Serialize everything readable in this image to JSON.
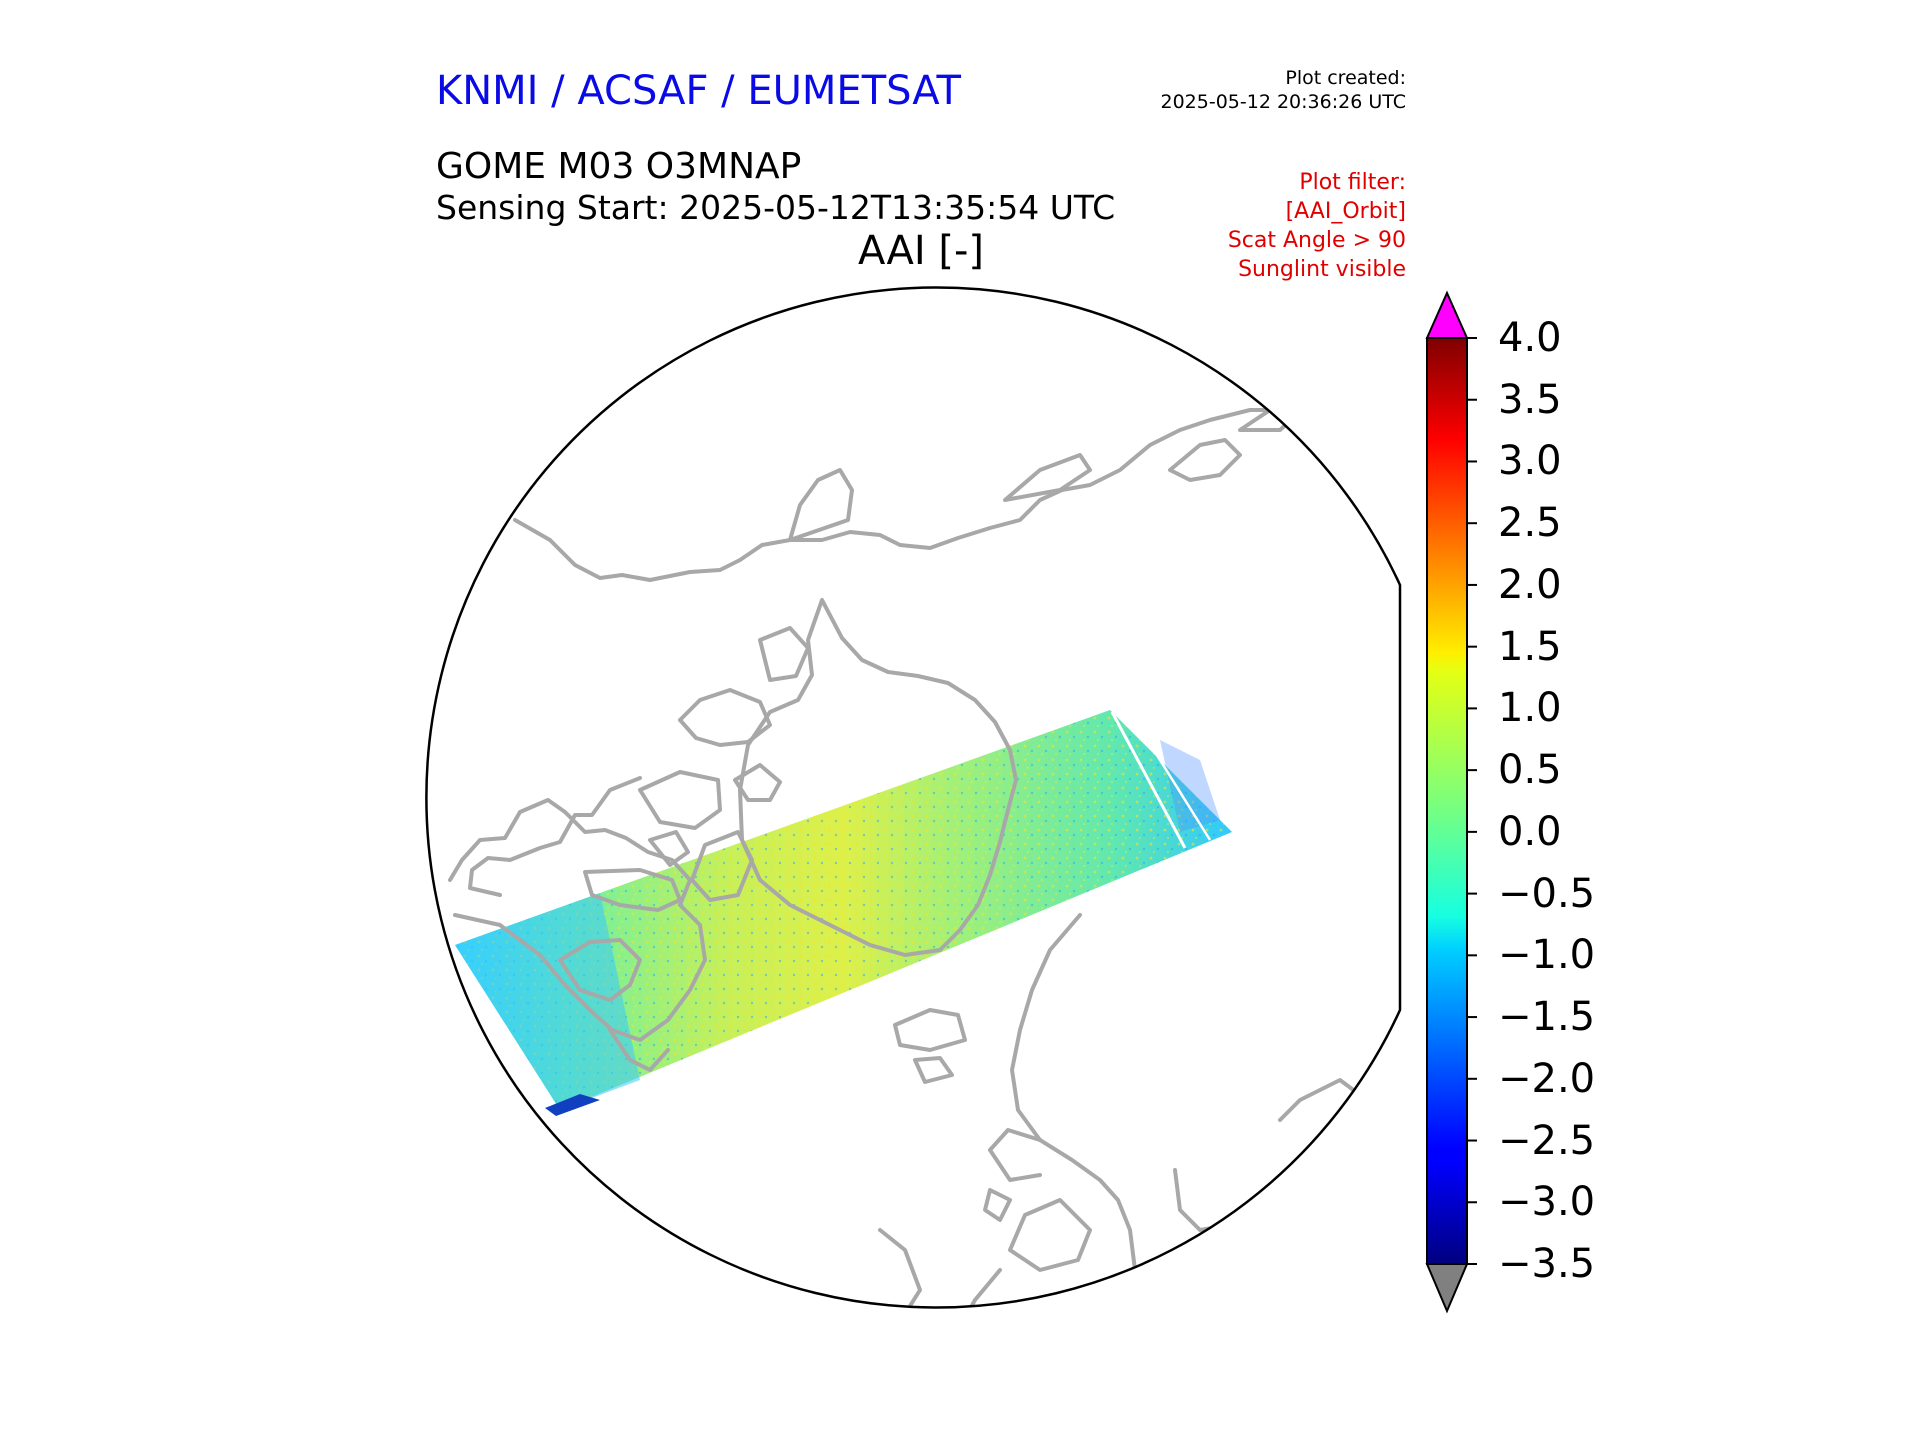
{
  "header": {
    "organization": "KNMI / ACSAF / EUMETSAT",
    "plot_created_label": "Plot created:",
    "plot_created_value": "2025-05-12 20:36:26 UTC",
    "product": "GOME M03 O3MNAP",
    "sensing_start": "Sensing Start: 2025-05-12T13:35:54 UTC",
    "plot_title": "AAI [-]",
    "filter_lines": [
      "Plot filter:",
      "[AAI_Orbit]",
      "Scat Angle > 90",
      "Sunglint visible"
    ]
  },
  "map": {
    "projection": "north polar stereographic",
    "coastline_color": "#a8a8a8",
    "swath_description": "single GOME orbit swath across North America, Greenland and the North Atlantic"
  },
  "colorbar": {
    "colormap": "jet",
    "min": -3.5,
    "max": 4.0,
    "ticks": [
      "4.0",
      "3.5",
      "3.0",
      "2.5",
      "2.0",
      "1.5",
      "1.0",
      "0.5",
      "0.0",
      "−0.5",
      "−1.0",
      "−1.5",
      "−2.0",
      "−2.5",
      "−3.0",
      "−3.5"
    ],
    "over_color": "#ff00ff",
    "under_color": "#808080"
  }
}
